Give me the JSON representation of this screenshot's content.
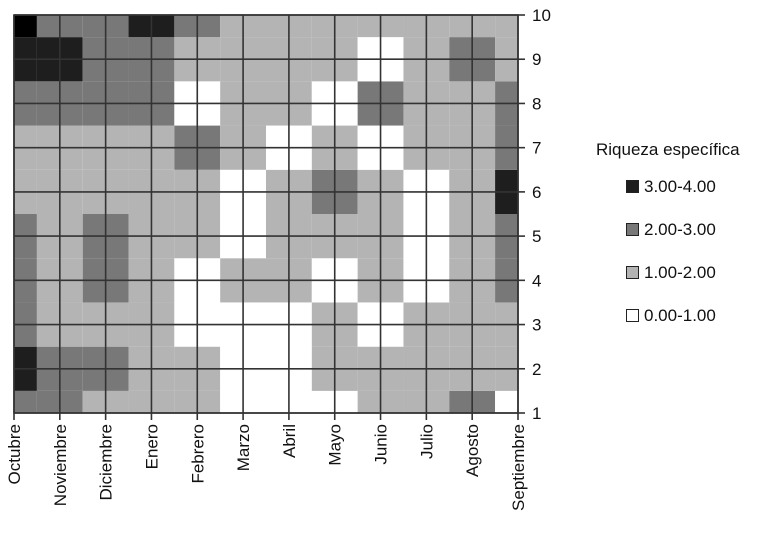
{
  "chart_data": {
    "type": "heatmap",
    "title": "",
    "xlabel": "",
    "ylabel": "",
    "x": [
      "Octubre",
      "Noviembre",
      "Diciembre",
      "Enero",
      "Febrero",
      "Marzo",
      "Abril",
      "Mayo",
      "Junio",
      "Julio",
      "Agosto",
      "Septiembre"
    ],
    "y": [
      "1",
      "2",
      "3",
      "4",
      "5",
      "6",
      "7",
      "8",
      "9",
      "10"
    ],
    "ylim": [
      1,
      10
    ],
    "grid": true,
    "legend_position": "right",
    "legend": {
      "title": "Riqueza específica",
      "items": [
        {
          "label": "3.00-4.00",
          "color": "#1e1e1e"
        },
        {
          "label": "2.00-3.00",
          "color": "#787878"
        },
        {
          "label": "1.00-2.00",
          "color": "#b4b4b4"
        },
        {
          "label": "0.00-1.00",
          "color": "#ffffff"
        }
      ]
    },
    "values_by_y": [
      [
        2,
        2,
        1,
        1,
        1,
        0,
        0,
        0,
        1,
        1,
        2,
        0
      ],
      [
        3,
        2,
        2,
        1,
        1,
        0,
        0,
        1,
        1,
        1,
        1,
        1
      ],
      [
        2,
        1,
        1,
        1,
        0,
        0,
        0,
        1,
        0,
        1,
        1,
        1
      ],
      [
        2,
        1,
        2,
        1,
        0,
        1,
        1,
        0,
        1,
        0,
        1,
        2
      ],
      [
        2,
        1,
        2,
        1,
        1,
        0,
        1,
        1,
        1,
        0,
        1,
        2
      ],
      [
        1,
        1,
        1,
        1,
        1,
        0,
        1,
        2,
        1,
        0,
        1,
        3
      ],
      [
        1,
        1,
        1,
        1,
        2,
        1,
        0,
        1,
        0,
        1,
        1,
        2
      ],
      [
        2,
        2,
        2,
        2,
        0,
        1,
        1,
        0,
        2,
        1,
        1,
        2
      ],
      [
        3,
        3,
        2,
        2,
        1,
        1,
        1,
        1,
        0,
        1,
        2,
        1
      ],
      [
        4,
        2,
        2,
        3,
        2,
        1,
        1,
        1,
        1,
        1,
        1,
        1
      ]
    ]
  }
}
